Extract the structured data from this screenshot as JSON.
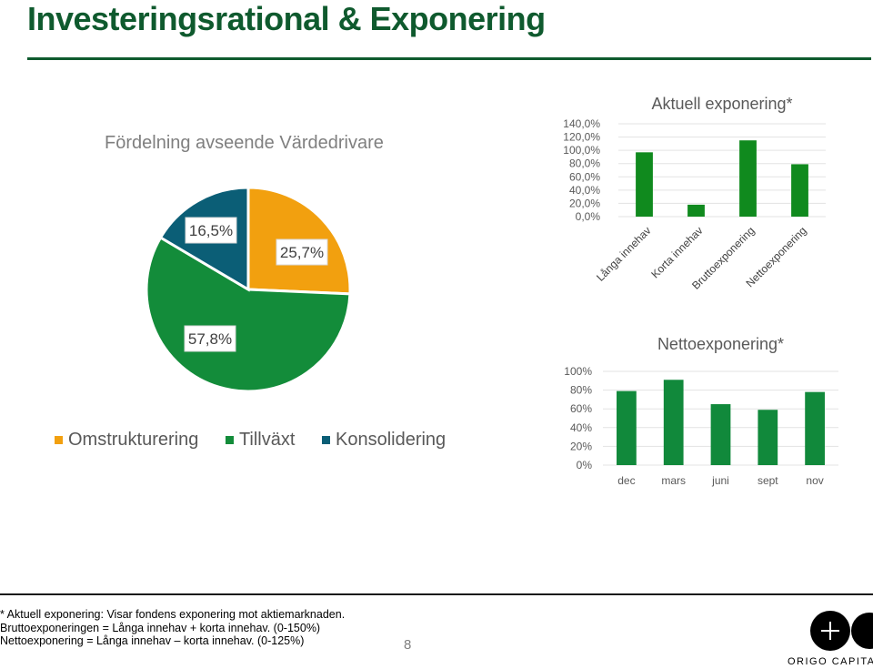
{
  "page": {
    "title": "Investeringsrational & Exponering",
    "page_number": "8",
    "footnotes": [
      "* Aktuell exponering: Visar fondens exponering mot aktiemarknaden.",
      "Bruttoexponeringen = Långa innehav + korta innehav. (0-150%)",
      "Nettoexponering = Långa innehav – korta innehav. (0-125%)"
    ],
    "logo_text": "ORIGO CAPITAL"
  },
  "chart_data": [
    {
      "type": "pie",
      "title": "Fördelning avseende Värdedrivare",
      "categories": [
        "Omstrukturering",
        "Tillväxt",
        "Konsolidering"
      ],
      "values": [
        25.7,
        57.8,
        16.5
      ],
      "data_labels": [
        "25,7%",
        "57,8%",
        "16,5%"
      ],
      "colors": [
        "#f2a00f",
        "#138c3a",
        "#0b5e76"
      ],
      "legend": "bottom"
    },
    {
      "type": "bar",
      "title": "Aktuell exponering*",
      "categories": [
        "Långa innehav",
        "Korta innehav",
        "Bruttoexponering",
        "Nettoexponering"
      ],
      "values": [
        97,
        18,
        115,
        79
      ],
      "ylim": [
        0,
        140
      ],
      "yticks": [
        0,
        20,
        40,
        60,
        80,
        100,
        120,
        140
      ],
      "ytick_labels": [
        "0,0%",
        "20,0%",
        "40,0%",
        "60,0%",
        "80,0%",
        "100,0%",
        "120,0%",
        "140,0%"
      ],
      "color": "#108a1e",
      "grid": true
    },
    {
      "type": "bar",
      "title": "Nettoexponering*",
      "categories": [
        "dec",
        "mars",
        "juni",
        "sept",
        "nov"
      ],
      "values": [
        79,
        91,
        65,
        59,
        78
      ],
      "ylim": [
        0,
        100
      ],
      "yticks": [
        0,
        20,
        40,
        60,
        80,
        100
      ],
      "ytick_labels": [
        "0%",
        "20%",
        "40%",
        "60%",
        "80%",
        "100%"
      ],
      "color": "#11893b",
      "grid": true
    }
  ]
}
